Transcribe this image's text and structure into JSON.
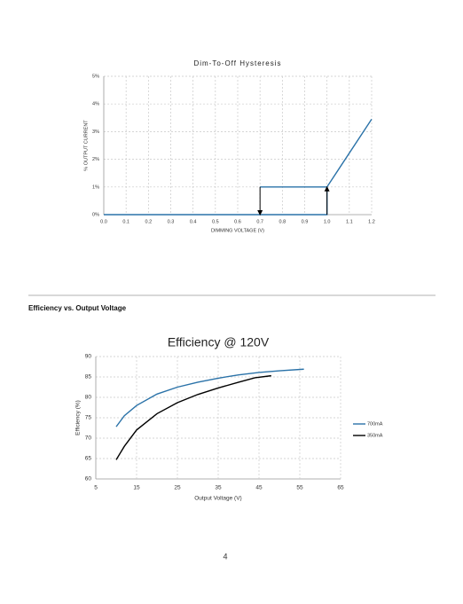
{
  "section_title": "Efficiency vs. Output Voltage",
  "page_number": "4",
  "chart_data": [
    {
      "type": "line",
      "title": "Dim-To-Off Hysteresis",
      "xlabel": "DIMMING VOLTAGE (V)",
      "ylabel": "% OUTPUT CURRENT",
      "xlim": [
        0,
        1.2
      ],
      "ylim": [
        0,
        5
      ],
      "grid": true,
      "xticks": [
        {
          "value": 0,
          "label": "0.0"
        },
        0.1,
        0.2,
        0.3,
        0.4,
        0.5,
        0.6,
        0.7,
        0.8,
        0.9,
        {
          "value": 1,
          "label": "1.0"
        },
        1.1,
        1.2
      ],
      "yticks": [
        {
          "value": 0,
          "label": "0%"
        },
        {
          "value": 1,
          "label": "1%"
        },
        {
          "value": 2,
          "label": "2%"
        },
        {
          "value": 3,
          "label": "3%"
        },
        {
          "value": 4,
          "label": "4%"
        },
        {
          "value": 5,
          "label": "5%"
        }
      ],
      "series": [
        {
          "color": "#2a72a8",
          "x": [
            0,
            1,
            1,
            1.2
          ],
          "values": [
            0,
            0,
            1,
            3.45
          ]
        },
        {
          "color": "#2a72a8",
          "x": [
            0.7,
            1
          ],
          "values": [
            1,
            1
          ]
        },
        {
          "color": "#000000",
          "arrow": true,
          "x": [
            0.7,
            0.7
          ],
          "values": [
            1,
            0
          ]
        },
        {
          "color": "#000000",
          "arrow": true,
          "x": [
            1,
            1
          ],
          "values": [
            0,
            1
          ]
        }
      ]
    },
    {
      "type": "line",
      "title": "Efficiency @ 120V",
      "xlabel": "Output Voltage (V)",
      "ylabel": "Efficiency (%)",
      "xlim": [
        5,
        65
      ],
      "ylim": [
        60,
        90
      ],
      "grid": true,
      "legend": "right",
      "xticks": [
        5,
        15,
        25,
        35,
        45,
        55,
        65
      ],
      "yticks": [
        60,
        65,
        70,
        75,
        80,
        85,
        90
      ],
      "series": [
        {
          "name": "700mA",
          "color": "#2a72a8",
          "x": [
            10,
            12,
            15,
            20,
            25,
            30,
            35,
            40,
            45,
            50,
            56
          ],
          "values": [
            72.8,
            75.5,
            78,
            80.8,
            82.5,
            83.7,
            84.7,
            85.5,
            86.1,
            86.5,
            86.9
          ]
        },
        {
          "name": "350mA",
          "color": "#000000",
          "x": [
            10,
            12,
            15,
            20,
            25,
            30,
            35,
            40,
            44,
            48
          ],
          "values": [
            64.7,
            68,
            72,
            76,
            78.7,
            80.7,
            82.3,
            83.7,
            84.8,
            85.3
          ]
        }
      ]
    }
  ]
}
